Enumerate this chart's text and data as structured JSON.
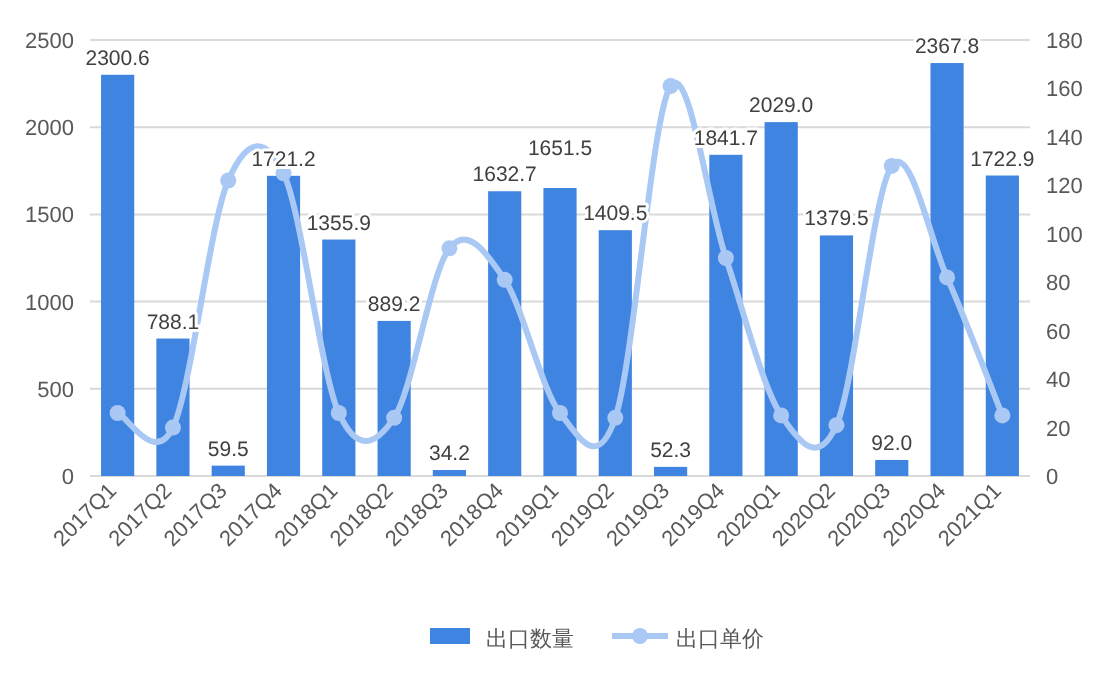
{
  "chart_data": {
    "type": "bar",
    "categories": [
      "2017Q1",
      "2017Q2",
      "2017Q3",
      "2017Q4",
      "2018Q1",
      "2018Q2",
      "2018Q3",
      "2018Q4",
      "2019Q1",
      "2019Q2",
      "2019Q3",
      "2019Q4",
      "2020Q1",
      "2020Q2",
      "2020Q3",
      "2020Q4",
      "2021Q1"
    ],
    "series": [
      {
        "name": "出口数量",
        "color": "#3f84e0",
        "values": [
          2300.6,
          788.1,
          59.5,
          1721.2,
          1355.9,
          889.2,
          34.2,
          1632.7,
          1651.5,
          1409.5,
          52.3,
          1841.7,
          2029,
          1379.5,
          92,
          2367.8,
          1722.9
        ],
        "value_labels": [
          "2300.6",
          "788.1",
          "59.5",
          "1721.2",
          "1355.9",
          "889.2",
          "34.2",
          "1632.7",
          "1651.5",
          "1409.5",
          "52.3",
          "1841.7",
          "2029.0",
          "1379.5",
          "92.0",
          "2367.8",
          "1722.9"
        ]
      },
      {
        "name": "出口单价",
        "type": "line",
        "axis": "y2",
        "color": "#a9c9f4",
        "marker": "circle",
        "line_style": "solid",
        "values": [
          26,
          20,
          122,
          125,
          26,
          24,
          94,
          81,
          26,
          24,
          161,
          90,
          25,
          21,
          128,
          82,
          25
        ]
      }
    ],
    "ylim": [
      0,
      2500
    ],
    "yticks": [
      0,
      500,
      1000,
      1500,
      2000,
      2500
    ],
    "y2lim": [
      0,
      180
    ],
    "y2ticks": [
      0,
      20,
      40,
      60,
      80,
      100,
      120,
      140,
      160,
      180
    ],
    "grid": "y",
    "legend": "bottom"
  }
}
